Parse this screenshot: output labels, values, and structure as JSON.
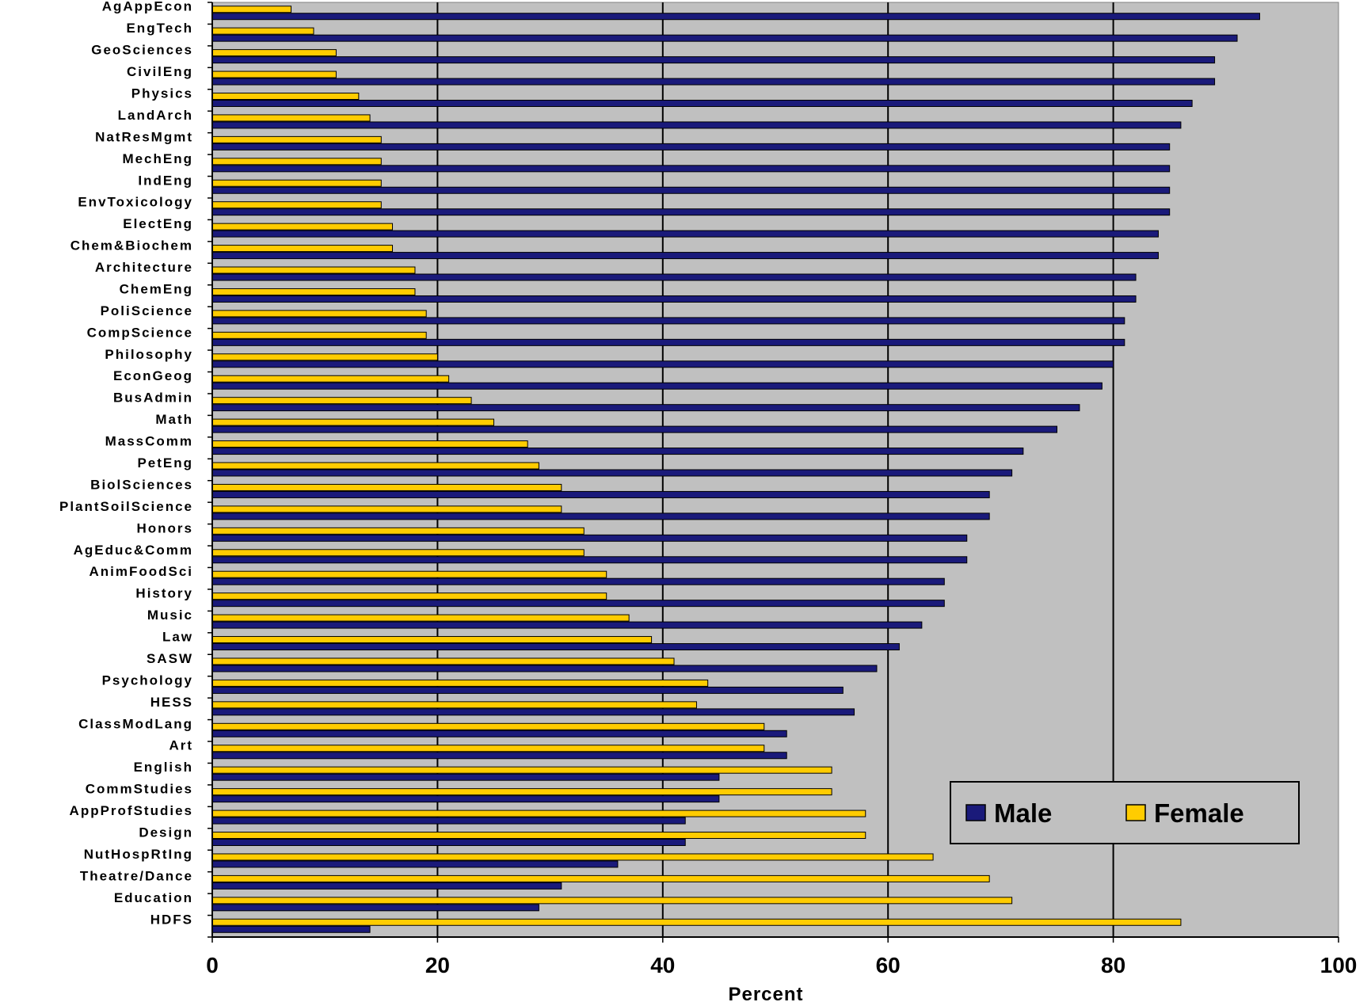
{
  "chart_data": {
    "type": "bar",
    "orientation": "horizontal",
    "categories": [
      "AgAppEcon",
      "EngTech",
      "GeoSciences",
      "CivilEng",
      "Physics",
      "LandArch",
      "NatResMgmt",
      "MechEng",
      "IndEng",
      "EnvToxicology",
      "ElectEng",
      "Chem&Biochem",
      "Architecture",
      "ChemEng",
      "PoliScience",
      "CompScience",
      "Philosophy",
      "EconGeog",
      "BusAdmin",
      "Math",
      "MassComm",
      "PetEng",
      "BiolSciences",
      "PlantSoilScience",
      "Honors",
      "AgEduc&Comm",
      "AnimFoodSci",
      "History",
      "Music",
      "Law",
      "SASW",
      "Psychology",
      "HESS",
      "ClassModLang",
      "Art",
      "English",
      "CommStudies",
      "AppProfStudies",
      "Design",
      "NutHospRtIng",
      "Theatre/Dance",
      "Education",
      "HDFS"
    ],
    "series": [
      {
        "name": "Male",
        "color": "#1a1a7a",
        "values": [
          93,
          91,
          89,
          89,
          87,
          86,
          85,
          85,
          85,
          85,
          84,
          84,
          82,
          82,
          81,
          81,
          80,
          79,
          77,
          75,
          72,
          71,
          69,
          69,
          67,
          67,
          65,
          65,
          63,
          61,
          59,
          56,
          57,
          51,
          51,
          45,
          45,
          42,
          42,
          36,
          31,
          29,
          14
        ]
      },
      {
        "name": "Female",
        "color": "#ffcc00",
        "values": [
          7,
          9,
          11,
          11,
          13,
          14,
          15,
          15,
          15,
          15,
          16,
          16,
          18,
          18,
          19,
          19,
          20,
          21,
          23,
          25,
          28,
          29,
          31,
          31,
          33,
          33,
          35,
          35,
          37,
          39,
          41,
          44,
          43,
          49,
          49,
          55,
          55,
          58,
          58,
          64,
          69,
          71,
          86
        ]
      }
    ],
    "xlabel": "Percent",
    "xlim": [
      0,
      100
    ],
    "xticks": [
      "0",
      "20",
      "40",
      "60",
      "80",
      "100"
    ],
    "grid": "vertical major gridlines",
    "plot_background": "#c0c0c0",
    "legend": {
      "placement": "bottom-right",
      "entries": [
        "Male",
        "Female"
      ]
    }
  }
}
